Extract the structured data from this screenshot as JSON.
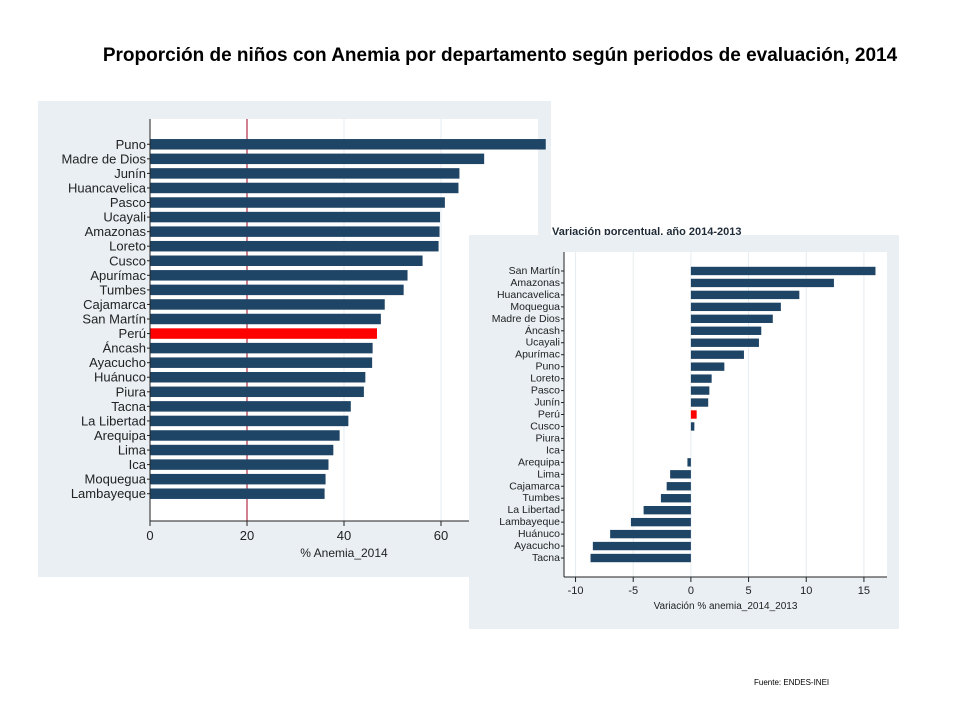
{
  "title": "Proporción de niños con Anemia por departamento según periodos de evaluación, 2014",
  "source": "Fuente: ENDES-INEI",
  "colors": {
    "bar": "#1f4566",
    "highlight": "#ff0000",
    "panel": "#e9eff3",
    "plot": "#ffffff",
    "refline": "#a0001e"
  },
  "chart_data": [
    {
      "type": "bar",
      "orientation": "horizontal",
      "title": "",
      "xlabel": "% Anemia_2014",
      "ylabel": "",
      "xlim": [
        0,
        80
      ],
      "xticks": [
        0,
        20,
        40,
        60
      ],
      "reference_line": 20,
      "highlight": "Perú",
      "grid": true,
      "categories": [
        "Puno",
        "Madre de Dios",
        "Junín",
        "Huancavelica",
        "Pasco",
        "Ucayali",
        "Amazonas",
        "Loreto",
        "Cusco",
        "Apurímac",
        "Tumbes",
        "Cajamarca",
        "San Martín",
        "Perú",
        "Áncash",
        "Ayacucho",
        "Huánuco",
        "Piura",
        "Tacna",
        "La Libertad",
        "Arequipa",
        "Lima",
        "Ica",
        "Moquegua",
        "Lambayeque"
      ],
      "values": [
        81.6,
        68.9,
        63.8,
        63.6,
        60.8,
        59.8,
        59.7,
        59.5,
        56.2,
        53.1,
        52.3,
        48.4,
        47.6,
        46.8,
        45.9,
        45.8,
        44.4,
        44.1,
        41.4,
        40.9,
        39.1,
        37.8,
        36.8,
        36.2,
        36.0
      ]
    },
    {
      "type": "bar",
      "orientation": "horizontal",
      "title": "Variación porcentual, año 2014-2013",
      "xlabel": "Variación % anemia_2014_2013",
      "ylabel": "",
      "xlim": [
        -11,
        17
      ],
      "xticks": [
        -10,
        -5,
        0,
        5,
        10,
        15
      ],
      "highlight": "Perú",
      "grid": true,
      "categories": [
        "San Martín",
        "Amazonas",
        "Huancavelica",
        "Moquegua",
        "Madre de Dios",
        "Áncash",
        "Ucayali",
        "Apurímac",
        "Puno",
        "Loreto",
        "Pasco",
        "Junín",
        "Perú",
        "Cusco",
        "Piura",
        "Ica",
        "Arequipa",
        "Lima",
        "Cajamarca",
        "Tumbes",
        "La Libertad",
        "Lambayeque",
        "Huánuco",
        "Ayacucho",
        "Tacna"
      ],
      "values": [
        16.0,
        12.4,
        9.4,
        7.8,
        7.1,
        6.1,
        5.9,
        4.6,
        2.9,
        1.8,
        1.6,
        1.5,
        0.5,
        0.3,
        0.0,
        0.0,
        -0.3,
        -1.8,
        -2.1,
        -2.6,
        -4.1,
        -5.2,
        -7.0,
        -8.5,
        -8.7
      ]
    }
  ]
}
